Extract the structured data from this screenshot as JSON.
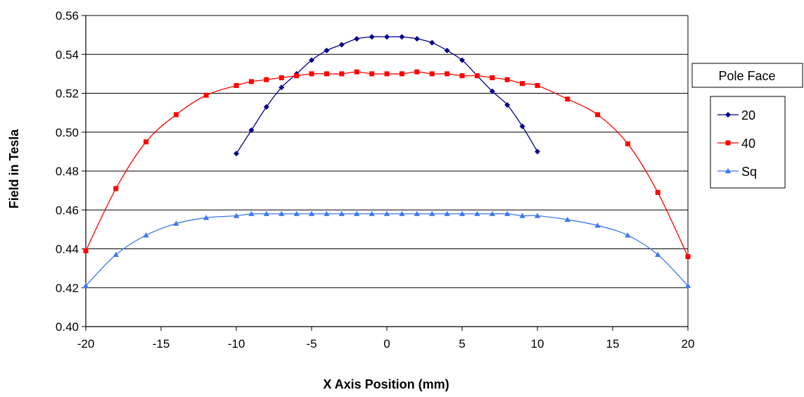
{
  "chart_data": {
    "type": "line",
    "title": "",
    "xlabel": "X Axis Position (mm)",
    "ylabel": "Field in Tesla",
    "xlim": [
      -20,
      20
    ],
    "ylim": [
      0.4,
      0.56
    ],
    "x_ticks": [
      "-20",
      "-15",
      "-10",
      "-5",
      "0",
      "5",
      "10",
      "15",
      "20"
    ],
    "y_ticks": [
      "0.40",
      "0.42",
      "0.44",
      "0.46",
      "0.48",
      "0.50",
      "0.52",
      "0.54",
      "0.56"
    ],
    "grid": "horizontal",
    "legend_title": "Pole Face",
    "legend_position": "right",
    "series": [
      {
        "name": "20",
        "color": "#00008b",
        "marker": "diamond",
        "x": [
          -10,
          -9,
          -8,
          -7,
          -6,
          -5,
          -4,
          -3,
          -2,
          -1,
          0,
          1,
          2,
          3,
          4,
          5,
          6,
          7,
          8,
          9,
          10
        ],
        "y": [
          0.489,
          0.501,
          0.513,
          0.523,
          0.53,
          0.537,
          0.542,
          0.545,
          0.548,
          0.549,
          0.549,
          0.549,
          0.548,
          0.546,
          0.542,
          0.537,
          0.529,
          0.521,
          0.514,
          0.503,
          0.49
        ]
      },
      {
        "name": "40",
        "color": "#ff0000",
        "marker": "square",
        "x": [
          -20,
          -18,
          -16,
          -14,
          -12,
          -10,
          -9,
          -8,
          -7,
          -6,
          -5,
          -4,
          -3,
          -2,
          -1,
          0,
          1,
          2,
          3,
          4,
          5,
          6,
          7,
          8,
          9,
          10,
          12,
          14,
          16,
          18,
          20
        ],
        "y": [
          0.439,
          0.471,
          0.495,
          0.509,
          0.519,
          0.524,
          0.526,
          0.527,
          0.528,
          0.529,
          0.53,
          0.53,
          0.53,
          0.531,
          0.53,
          0.53,
          0.53,
          0.531,
          0.53,
          0.53,
          0.529,
          0.529,
          0.528,
          0.527,
          0.525,
          0.524,
          0.517,
          0.509,
          0.494,
          0.469,
          0.436
        ]
      },
      {
        "name": "Sq",
        "color": "#3c78f0",
        "marker": "triangle",
        "x": [
          -20,
          -18,
          -16,
          -14,
          -12,
          -10,
          -9,
          -8,
          -7,
          -6,
          -5,
          -4,
          -3,
          -2,
          -1,
          0,
          1,
          2,
          3,
          4,
          5,
          6,
          7,
          8,
          9,
          10,
          12,
          14,
          16,
          18,
          20
        ],
        "y": [
          0.421,
          0.437,
          0.447,
          0.453,
          0.456,
          0.457,
          0.458,
          0.458,
          0.458,
          0.458,
          0.458,
          0.458,
          0.458,
          0.458,
          0.458,
          0.458,
          0.458,
          0.458,
          0.458,
          0.458,
          0.458,
          0.458,
          0.458,
          0.458,
          0.457,
          0.457,
          0.455,
          0.452,
          0.447,
          0.437,
          0.421
        ]
      }
    ]
  }
}
